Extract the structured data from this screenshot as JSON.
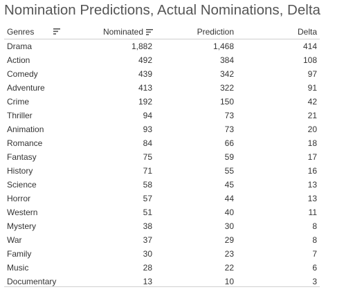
{
  "title": "Nomination Predictions, Actual Nominations, Delta",
  "columns": {
    "genre": "Genres",
    "nominated": "Nominated",
    "prediction": "Prediction",
    "delta": "Delta"
  },
  "rows": [
    {
      "genre": "Drama",
      "nominated": "1,882",
      "prediction": "1,468",
      "delta": "414"
    },
    {
      "genre": "Action",
      "nominated": "492",
      "prediction": "384",
      "delta": "108"
    },
    {
      "genre": "Comedy",
      "nominated": "439",
      "prediction": "342",
      "delta": "97"
    },
    {
      "genre": "Adventure",
      "nominated": "413",
      "prediction": "322",
      "delta": "91"
    },
    {
      "genre": "Crime",
      "nominated": "192",
      "prediction": "150",
      "delta": "42"
    },
    {
      "genre": "Thriller",
      "nominated": "94",
      "prediction": "73",
      "delta": "21"
    },
    {
      "genre": "Animation",
      "nominated": "93",
      "prediction": "73",
      "delta": "20"
    },
    {
      "genre": "Romance",
      "nominated": "84",
      "prediction": "66",
      "delta": "18"
    },
    {
      "genre": "Fantasy",
      "nominated": "75",
      "prediction": "59",
      "delta": "17"
    },
    {
      "genre": "History",
      "nominated": "71",
      "prediction": "55",
      "delta": "16"
    },
    {
      "genre": "Science",
      "nominated": "58",
      "prediction": "45",
      "delta": "13"
    },
    {
      "genre": "Horror",
      "nominated": "57",
      "prediction": "44",
      "delta": "13"
    },
    {
      "genre": "Western",
      "nominated": "51",
      "prediction": "40",
      "delta": "11"
    },
    {
      "genre": "Mystery",
      "nominated": "38",
      "prediction": "30",
      "delta": "8"
    },
    {
      "genre": "War",
      "nominated": "37",
      "prediction": "29",
      "delta": "8"
    },
    {
      "genre": "Family",
      "nominated": "30",
      "prediction": "23",
      "delta": "7"
    },
    {
      "genre": "Music",
      "nominated": "28",
      "prediction": "22",
      "delta": "6"
    },
    {
      "genre": "Documentary",
      "nominated": "13",
      "prediction": "10",
      "delta": "3"
    }
  ],
  "icons": {
    "genre_sort": "sort-icon",
    "nominated_sort": "sort-descending-icon"
  }
}
